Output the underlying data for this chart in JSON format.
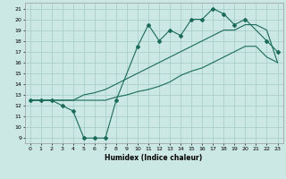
{
  "xlabel": "Humidex (Indice chaleur)",
  "xlim": [
    -0.5,
    23.5
  ],
  "ylim": [
    8.5,
    21.5
  ],
  "xticks": [
    0,
    1,
    2,
    3,
    4,
    5,
    6,
    7,
    8,
    9,
    10,
    11,
    12,
    13,
    14,
    15,
    16,
    17,
    18,
    19,
    20,
    21,
    22,
    23
  ],
  "yticks": [
    9,
    10,
    11,
    12,
    13,
    14,
    15,
    16,
    17,
    18,
    19,
    20,
    21
  ],
  "bg_color": "#cce8e4",
  "grid_color": "#aacfcb",
  "line_color": "#1a6b5a",
  "line1_x": [
    0,
    1,
    2,
    3,
    4,
    5,
    6,
    7,
    8,
    10,
    11,
    12,
    13,
    14,
    15,
    16,
    17,
    18,
    19,
    20,
    22,
    23
  ],
  "line1_y": [
    12.5,
    12.5,
    12.5,
    12.0,
    11.5,
    9.0,
    9.0,
    9.0,
    12.5,
    17.5,
    19.5,
    18.0,
    19.0,
    18.5,
    20.0,
    20.0,
    21.0,
    20.5,
    19.5,
    20.0,
    18.0,
    17.0
  ],
  "line2_x": [
    0,
    1,
    2,
    3,
    4,
    5,
    6,
    7,
    8,
    9,
    10,
    11,
    12,
    13,
    14,
    15,
    16,
    17,
    18,
    19,
    20,
    21,
    22,
    23
  ],
  "line2_y": [
    12.5,
    12.5,
    12.5,
    12.5,
    12.5,
    13.0,
    13.2,
    13.5,
    14.0,
    14.5,
    15.0,
    15.5,
    16.0,
    16.5,
    17.0,
    17.5,
    18.0,
    18.5,
    19.0,
    19.0,
    19.5,
    19.5,
    19.0,
    16.0
  ],
  "line3_x": [
    0,
    1,
    2,
    3,
    4,
    5,
    6,
    7,
    8,
    9,
    10,
    11,
    12,
    13,
    14,
    15,
    16,
    17,
    18,
    19,
    20,
    21,
    22,
    23
  ],
  "line3_y": [
    12.5,
    12.5,
    12.5,
    12.5,
    12.5,
    12.5,
    12.5,
    12.5,
    12.8,
    13.0,
    13.3,
    13.5,
    13.8,
    14.2,
    14.8,
    15.2,
    15.5,
    16.0,
    16.5,
    17.0,
    17.5,
    17.5,
    16.5,
    16.0
  ]
}
